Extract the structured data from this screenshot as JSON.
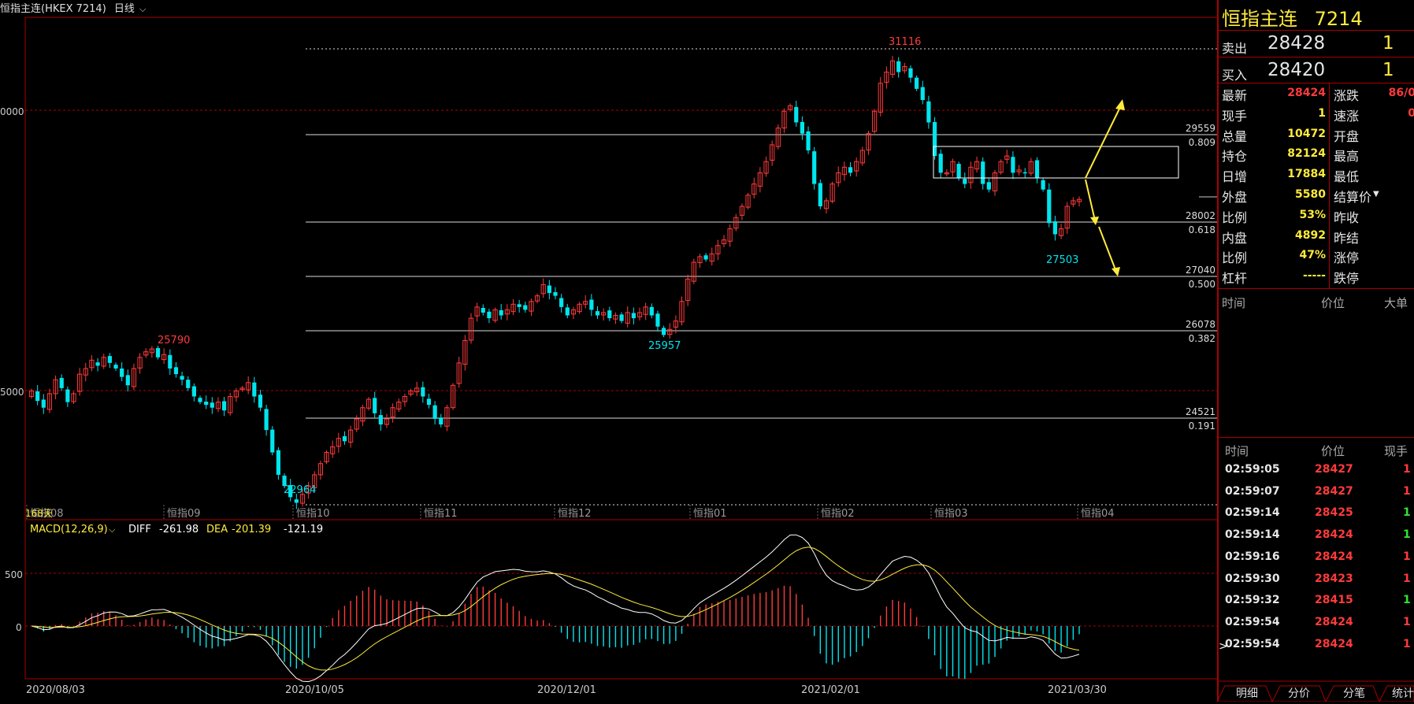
{
  "header": {
    "instrument": "恒指主连(HKEX 7214)",
    "period": "日线"
  },
  "chart_data": {
    "type": "candlestick",
    "price_axis_labels": [
      "0000",
      "5000"
    ],
    "date_labels": [
      "2020/08/03",
      "2020/10/05",
      "2020/12/01",
      "2021/02/01",
      "2021/03/30"
    ],
    "month_labels": [
      "恒指08",
      "恒指09",
      "恒指10",
      "恒指11",
      "恒指12",
      "恒指01",
      "恒指02",
      "恒指03",
      "恒指04"
    ],
    "days_label": "168天",
    "annotations": {
      "high_1": "25790",
      "low_1": "22964",
      "low_2": "25957",
      "high_2": "31116",
      "low_3": "27503"
    },
    "fib_levels": [
      {
        "price": "29559",
        "ratio": "0.809"
      },
      {
        "price": "28002",
        "ratio": "0.618"
      },
      {
        "price": "27040",
        "ratio": "0.500"
      },
      {
        "price": "26078",
        "ratio": "0.382"
      },
      {
        "price": "24521",
        "ratio": "0.191"
      }
    ],
    "close_series": [
      25000,
      24820,
      24700,
      24950,
      25200,
      25050,
      24800,
      24950,
      25300,
      25400,
      25550,
      25450,
      25600,
      25500,
      25400,
      25250,
      25100,
      25400,
      25600,
      25700,
      25750,
      25600,
      25650,
      25400,
      25300,
      25200,
      25050,
      24900,
      24800,
      24750,
      24700,
      24800,
      24650,
      24900,
      25000,
      25050,
      25150,
      24900,
      24700,
      24300,
      23900,
      23500,
      23300,
      23100,
      23000,
      23150,
      23300,
      23500,
      23700,
      23900,
      24000,
      24150,
      24100,
      24300,
      24500,
      24700,
      24850,
      24600,
      24400,
      24500,
      24700,
      24800,
      24900,
      25000,
      25050,
      24900,
      24750,
      24500,
      24400,
      24700,
      25100,
      25500,
      25900,
      26300,
      26500,
      26400,
      26300,
      26450,
      26350,
      26450,
      26550,
      26500,
      26450,
      26600,
      26700,
      26900,
      26750,
      26700,
      26500,
      26350,
      26450,
      26550,
      26600,
      26450,
      26350,
      26400,
      26300,
      26350,
      26250,
      26400,
      26300,
      26400,
      26500,
      26350,
      26150,
      26000,
      26100,
      26250,
      26600,
      27000,
      27300,
      27400,
      27350,
      27450,
      27600,
      27700,
      27900,
      28100,
      28300,
      28500,
      28700,
      28900,
      29100,
      29400,
      29700,
      30000,
      30100,
      29800,
      29600,
      29300,
      28700,
      28300,
      28400,
      28700,
      28900,
      29000,
      28900,
      29100,
      29300,
      29600,
      30000,
      30500,
      30700,
      30900,
      30700,
      30800,
      30600,
      30400,
      30200,
      29800,
      29200,
      28900,
      28900,
      29100,
      28800,
      28700,
      29000,
      29100,
      28700,
      28600,
      28900,
      29100,
      29200,
      28900,
      28950,
      28900,
      29100,
      28800,
      28600,
      28000,
      27800,
      27900,
      28300,
      28400,
      28424
    ],
    "macd": {
      "label": "MACD(12,26,9)",
      "diff_label": "DIFF",
      "diff": "-261.98",
      "dea_label": "DEA",
      "dea": "-201.39",
      "hist": "-121.19",
      "axis_labels": [
        "500",
        "0"
      ]
    }
  },
  "quote": {
    "name": "恒指主连",
    "code": "7214",
    "ask_label": "卖出",
    "ask_price": "28428",
    "ask_qty": "1",
    "bid_label": "买入",
    "bid_price": "28420",
    "bid_qty": "1",
    "stats": [
      {
        "label": "最新",
        "value": "28424",
        "color": "red",
        "label2": "涨跌",
        "value2": "86/0"
      },
      {
        "label": "现手",
        "value": "1",
        "color": "yel",
        "label2": "速涨",
        "value2": "0"
      },
      {
        "label": "总量",
        "value": "10472",
        "color": "yel",
        "label2": "开盘",
        "value2": ""
      },
      {
        "label": "持仓",
        "value": "82124",
        "color": "yel",
        "label2": "最高",
        "value2": ""
      },
      {
        "label": "日增",
        "value": "17884",
        "color": "yel",
        "label2": "最低",
        "value2": ""
      },
      {
        "label": "外盘",
        "value": "5580",
        "color": "yel",
        "label2": "结算价",
        "value2": ""
      },
      {
        "label": "比例",
        "value": "53%",
        "color": "yel",
        "label2": "昨收",
        "value2": ""
      },
      {
        "label": "内盘",
        "value": "4892",
        "color": "yel",
        "label2": "昨结",
        "value2": ""
      },
      {
        "label": "比例",
        "value": "47%",
        "color": "yel",
        "label2": "涨停",
        "value2": ""
      },
      {
        "label": "杠杆",
        "value": "-----",
        "color": "yel",
        "label2": "跌停",
        "value2": ""
      }
    ]
  },
  "big_orders": {
    "headers": [
      "时间",
      "价位",
      "大单"
    ]
  },
  "ticks": {
    "headers": [
      "时间",
      "价位",
      "现手"
    ],
    "rows": [
      {
        "time": "02:59:05",
        "price": "28427",
        "qty": "1",
        "qcolor": "red"
      },
      {
        "time": "02:59:07",
        "price": "28427",
        "qty": "1",
        "qcolor": "red"
      },
      {
        "time": "02:59:14",
        "price": "28425",
        "qty": "1",
        "qcolor": "grn"
      },
      {
        "time": "02:59:14",
        "price": "28424",
        "qty": "1",
        "qcolor": "grn"
      },
      {
        "time": "02:59:16",
        "price": "28424",
        "qty": "1",
        "qcolor": "red"
      },
      {
        "time": "02:59:30",
        "price": "28423",
        "qty": "1",
        "qcolor": "red"
      },
      {
        "time": "02:59:32",
        "price": "28415",
        "qty": "1",
        "qcolor": "grn"
      },
      {
        "time": "02:59:54",
        "price": "28424",
        "qty": "1",
        "qcolor": "red"
      },
      {
        "time": "02:59:54",
        "price": "28424",
        "qty": "1",
        "qcolor": "red"
      }
    ]
  },
  "tabs": [
    "明细",
    "分价",
    "分笔",
    "统计"
  ],
  "colors": {
    "up": "#ff3b3b",
    "down": "#00e5ee",
    "accent": "#ffeb3b",
    "frame": "#aa0000"
  }
}
